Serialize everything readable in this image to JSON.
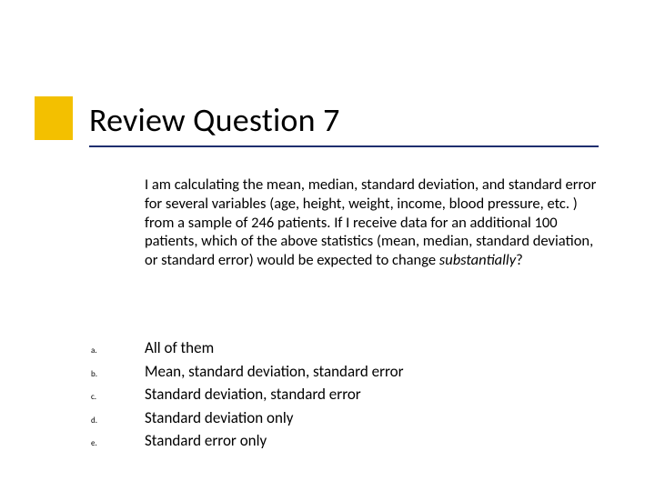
{
  "colors": {
    "accent": "#f3c000",
    "underline": "#1f2f6f",
    "background": "#ffffff",
    "text": "#000000"
  },
  "typography": {
    "title_fontsize": 36,
    "body_fontsize": 16.5,
    "option_letter_fontsize": 9,
    "font_family": "Calibri"
  },
  "title": "Review Question 7",
  "stem_pre": "I am calculating the mean, median, standard deviation, and standard error for several variables (age, height, weight, income, blood pressure, etc. ) from a sample of 246 patients.  If I receive data for an additional 100 patients, which of the above statistics (mean, median, standard deviation, or standard error) would be expected to change ",
  "stem_ital": "substantially",
  "stem_post": "?",
  "options": [
    {
      "letter": "a.",
      "text": "All of them"
    },
    {
      "letter": "b.",
      "text": "Mean, standard deviation, standard error"
    },
    {
      "letter": "c.",
      "text": "Standard deviation, standard error"
    },
    {
      "letter": "d.",
      "text": "Standard deviation only"
    },
    {
      "letter": "e.",
      "text": "Standard error only"
    }
  ]
}
